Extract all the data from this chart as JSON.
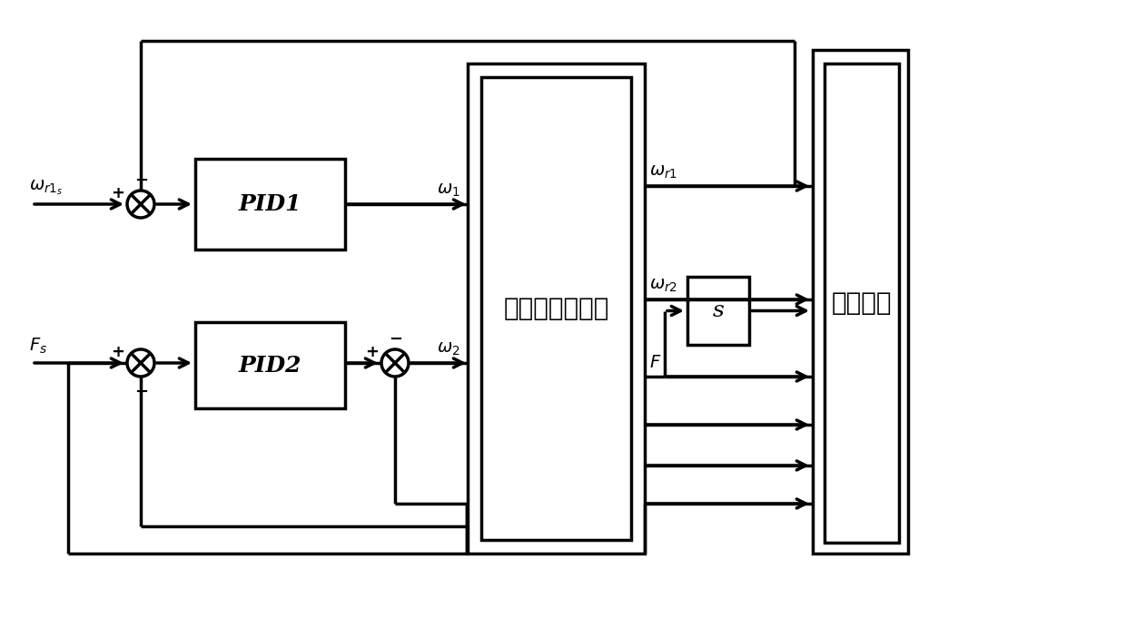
{
  "bg_color": "#ffffff",
  "lc": "#000000",
  "lw": 2.5,
  "fig_w": 12.4,
  "fig_h": 6.91,
  "dpi": 100,
  "pid1_label": "PID1",
  "pid2_label": "PID2",
  "motor_label": "两电机调速系统",
  "sample_label": "采样数据",
  "s_label": "s",
  "omega_r1s": "$\\omega_{r1_s}$",
  "Fs": "$F_s$",
  "omega1": "$\\omega_1$",
  "omega2": "$\\omega_2$",
  "omega_r1": "$\\omega_{r1}$",
  "omega_r2": "$\\omega_{r2}$",
  "F_out": "$F$",
  "plus": "+",
  "minus": "−",
  "sj_r": 0.022
}
